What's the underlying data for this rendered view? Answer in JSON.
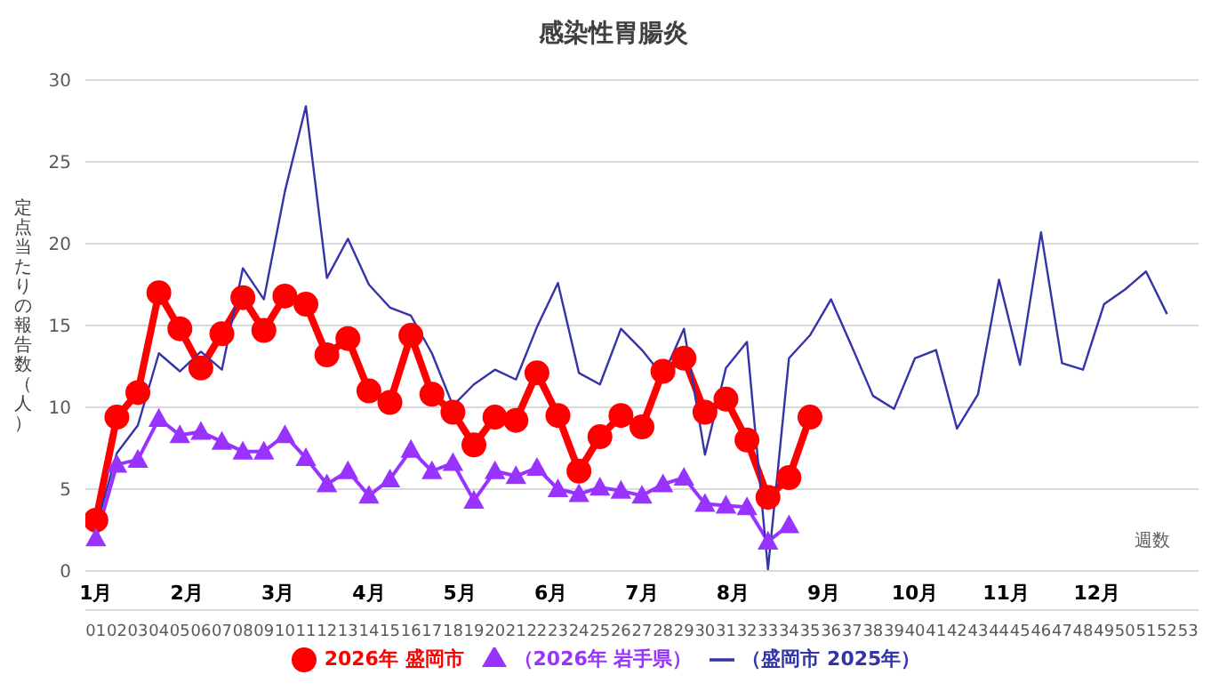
{
  "chart_data": {
    "type": "line",
    "title": "感染性胃腸炎",
    "xlabel": "週数",
    "ylabel": "定点当たりの報告数（人）",
    "categories": [
      "01",
      "02",
      "03",
      "04",
      "05",
      "06",
      "07",
      "08",
      "09",
      "10",
      "11",
      "12",
      "13",
      "14",
      "15",
      "16",
      "17",
      "18",
      "19",
      "20",
      "21",
      "22",
      "23",
      "24",
      "25",
      "26",
      "27",
      "28",
      "29",
      "30",
      "31",
      "32",
      "33",
      "34",
      "35",
      "36",
      "37",
      "38",
      "39",
      "40",
      "41",
      "42",
      "43",
      "44",
      "45",
      "46",
      "47",
      "48",
      "49",
      "50",
      "51",
      "52",
      "53"
    ],
    "series": [
      {
        "name": "2026年 盛岡市",
        "color": "#ff0000",
        "marker": "circle",
        "values": [
          3.1,
          9.4,
          10.9,
          17.0,
          14.8,
          12.4,
          14.5,
          16.7,
          14.7,
          16.8,
          16.3,
          13.2,
          14.2,
          11.0,
          10.3,
          14.4,
          10.8,
          9.7,
          7.7,
          9.4,
          9.2,
          12.1,
          9.5,
          6.1,
          8.2,
          9.5,
          8.8,
          12.2,
          13.0,
          9.7,
          10.5,
          8.0,
          4.5,
          5.7,
          9.4,
          null,
          null,
          null,
          null,
          null,
          null,
          null,
          null,
          null,
          null,
          null,
          null,
          null,
          null,
          null,
          null,
          null,
          null
        ]
      },
      {
        "name": "（2026年 岩手県）",
        "color": "#9933ff",
        "marker": "triangle",
        "values": [
          2.0,
          6.5,
          6.8,
          9.3,
          8.3,
          8.5,
          7.9,
          7.3,
          7.3,
          8.3,
          6.9,
          5.3,
          6.1,
          4.6,
          5.6,
          7.4,
          6.1,
          6.6,
          4.3,
          6.1,
          5.8,
          6.3,
          5.0,
          4.7,
          5.1,
          4.9,
          4.6,
          5.3,
          5.7,
          4.1,
          4.0,
          3.9,
          1.8,
          2.8,
          null,
          null,
          null,
          null,
          null,
          null,
          null,
          null,
          null,
          null,
          null,
          null,
          null,
          null,
          null,
          null,
          null,
          null,
          null
        ]
      },
      {
        "name": "（盛岡市 2025年）",
        "color": "#3333aa",
        "marker": "none",
        "values": [
          2.6,
          7.2,
          8.9,
          13.3,
          12.2,
          13.4,
          12.3,
          18.5,
          16.6,
          23.2,
          28.4,
          17.9,
          20.3,
          17.5,
          16.1,
          15.6,
          13.3,
          10.1,
          11.4,
          12.3,
          11.7,
          14.9,
          17.6,
          12.1,
          11.4,
          14.8,
          13.5,
          11.9,
          14.8,
          7.1,
          12.4,
          14.0,
          0.1,
          13.0,
          14.4,
          16.6,
          13.7,
          10.7,
          9.9,
          13.0,
          13.5,
          8.7,
          10.8,
          17.8,
          12.6,
          20.7,
          12.7,
          12.3,
          16.3,
          17.2,
          18.3,
          15.7,
          null
        ]
      }
    ],
    "annotations": [
      "1月",
      "2月",
      "3月",
      "4月",
      "5月",
      "6月",
      "7月",
      "8月",
      "9月",
      "10月",
      "11月",
      "12月"
    ],
    "ylim": [
      0,
      30
    ],
    "yticks": [
      0,
      5,
      10,
      15,
      20,
      25,
      30
    ],
    "grid": "y",
    "legend": "bottom"
  }
}
